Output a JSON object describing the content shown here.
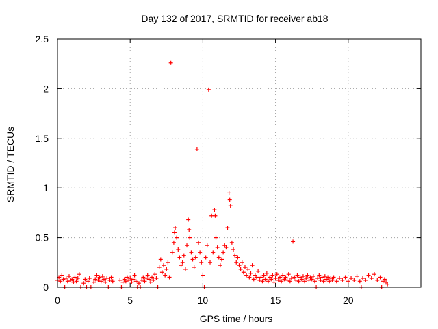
{
  "chart_data": {
    "type": "scatter",
    "title": "Day 132 of 2017, SRMTID for receiver ab18",
    "xlabel": "GPS time / hours",
    "ylabel": "SRMTID / TECUs",
    "xlim": [
      0,
      25
    ],
    "ylim": [
      0,
      2.5
    ],
    "xticks": [
      0,
      5,
      10,
      15,
      20
    ],
    "xtick_labels": [
      "0",
      "5",
      "10",
      "15",
      "20"
    ],
    "yticks": [
      0,
      0.5,
      1,
      1.5,
      2,
      2.5
    ],
    "ytick_labels": [
      "0",
      "0.5",
      "1",
      "1.5",
      "2",
      "2.5"
    ],
    "grid": true,
    "marker": "+",
    "series": [
      {
        "name": "SRMTID",
        "color": "#ff0000",
        "points": [
          [
            0.0,
            0.07
          ],
          [
            0.1,
            0.1
          ],
          [
            0.2,
            0.06
          ],
          [
            0.3,
            0.12
          ],
          [
            0.4,
            0.08
          ],
          [
            0.5,
            0.0
          ],
          [
            0.6,
            0.09
          ],
          [
            0.7,
            0.06
          ],
          [
            0.8,
            0.11
          ],
          [
            0.9,
            0.07
          ],
          [
            1.0,
            0.08
          ],
          [
            1.1,
            0.05
          ],
          [
            1.2,
            0.1
          ],
          [
            1.3,
            0.06
          ],
          [
            1.4,
            0.09
          ],
          [
            1.5,
            0.13
          ],
          [
            1.6,
            0.0
          ],
          [
            1.8,
            0.04
          ],
          [
            1.9,
            0.08
          ],
          [
            2.0,
            0.0
          ],
          [
            2.1,
            0.06
          ],
          [
            2.2,
            0.09
          ],
          [
            2.3,
            0.0
          ],
          [
            2.5,
            0.05
          ],
          [
            2.6,
            0.08
          ],
          [
            2.7,
            0.12
          ],
          [
            2.8,
            0.07
          ],
          [
            2.9,
            0.1
          ],
          [
            3.0,
            0.06
          ],
          [
            3.1,
            0.11
          ],
          [
            3.2,
            0.08
          ],
          [
            3.3,
            0.05
          ],
          [
            3.4,
            0.09
          ],
          [
            3.5,
            0.0
          ],
          [
            3.6,
            0.07
          ],
          [
            3.7,
            0.1
          ],
          [
            3.8,
            0.06
          ],
          [
            4.3,
            0.07
          ],
          [
            4.4,
            0.0
          ],
          [
            4.5,
            0.05
          ],
          [
            4.6,
            0.08
          ],
          [
            4.7,
            0.06
          ],
          [
            4.8,
            0.1
          ],
          [
            4.9,
            0.07
          ],
          [
            5.0,
            0.09
          ],
          [
            5.1,
            0.05
          ],
          [
            5.2,
            0.08
          ],
          [
            5.3,
            0.12
          ],
          [
            5.4,
            0.06
          ],
          [
            5.5,
            0.0
          ],
          [
            5.6,
            0.04
          ],
          [
            5.7,
            0.0
          ],
          [
            5.8,
            0.07
          ],
          [
            5.9,
            0.1
          ],
          [
            6.0,
            0.06
          ],
          [
            6.1,
            0.09
          ],
          [
            6.2,
            0.12
          ],
          [
            6.3,
            0.08
          ],
          [
            6.4,
            0.05
          ],
          [
            6.5,
            0.1
          ],
          [
            6.6,
            0.07
          ],
          [
            6.7,
            0.13
          ],
          [
            6.8,
            0.09
          ],
          [
            6.9,
            0.0
          ],
          [
            7.0,
            0.2
          ],
          [
            7.1,
            0.28
          ],
          [
            7.2,
            0.15
          ],
          [
            7.3,
            0.22
          ],
          [
            7.4,
            0.12
          ],
          [
            7.5,
            0.18
          ],
          [
            7.6,
            0.25
          ],
          [
            7.7,
            0.1
          ],
          [
            7.8,
            2.26
          ],
          [
            7.9,
            0.35
          ],
          [
            8.0,
            0.45
          ],
          [
            8.05,
            0.55
          ],
          [
            8.1,
            0.6
          ],
          [
            8.2,
            0.5
          ],
          [
            8.3,
            0.38
          ],
          [
            8.4,
            0.3
          ],
          [
            8.5,
            0.22
          ],
          [
            8.6,
            0.25
          ],
          [
            8.7,
            0.32
          ],
          [
            8.8,
            0.18
          ],
          [
            8.9,
            0.42
          ],
          [
            9.0,
            0.68
          ],
          [
            9.05,
            0.58
          ],
          [
            9.1,
            0.5
          ],
          [
            9.2,
            0.35
          ],
          [
            9.3,
            0.28
          ],
          [
            9.4,
            0.2
          ],
          [
            9.5,
            0.3
          ],
          [
            9.6,
            1.39
          ],
          [
            9.7,
            0.45
          ],
          [
            9.8,
            0.35
          ],
          [
            9.9,
            0.25
          ],
          [
            10.0,
            0.12
          ],
          [
            10.1,
            0.0
          ],
          [
            10.2,
            0.3
          ],
          [
            10.3,
            0.42
          ],
          [
            10.4,
            1.99
          ],
          [
            10.5,
            0.25
          ],
          [
            10.6,
            0.72
          ],
          [
            10.7,
            0.35
          ],
          [
            10.8,
            0.78
          ],
          [
            10.85,
            0.72
          ],
          [
            10.9,
            0.5
          ],
          [
            11.0,
            0.4
          ],
          [
            11.1,
            0.3
          ],
          [
            11.2,
            0.22
          ],
          [
            11.3,
            0.28
          ],
          [
            11.4,
            0.35
          ],
          [
            11.5,
            0.42
          ],
          [
            11.6,
            0.4
          ],
          [
            11.7,
            0.6
          ],
          [
            11.8,
            0.95
          ],
          [
            11.85,
            0.88
          ],
          [
            11.9,
            0.82
          ],
          [
            12.0,
            0.45
          ],
          [
            12.1,
            0.38
          ],
          [
            12.2,
            0.32
          ],
          [
            12.3,
            0.25
          ],
          [
            12.4,
            0.3
          ],
          [
            12.5,
            0.22
          ],
          [
            12.6,
            0.18
          ],
          [
            12.7,
            0.25
          ],
          [
            12.8,
            0.15
          ],
          [
            12.9,
            0.2
          ],
          [
            13.0,
            0.12
          ],
          [
            13.1,
            0.18
          ],
          [
            13.2,
            0.1
          ],
          [
            13.3,
            0.14
          ],
          [
            13.4,
            0.22
          ],
          [
            13.5,
            0.08
          ],
          [
            13.6,
            0.12
          ],
          [
            13.7,
            0.1
          ],
          [
            13.8,
            0.16
          ],
          [
            13.9,
            0.07
          ],
          [
            14.0,
            0.1
          ],
          [
            14.1,
            0.06
          ],
          [
            14.2,
            0.12
          ],
          [
            14.3,
            0.08
          ],
          [
            14.4,
            0.14
          ],
          [
            14.5,
            0.06
          ],
          [
            14.6,
            0.1
          ],
          [
            14.7,
            0.08
          ],
          [
            14.8,
            0.12
          ],
          [
            14.9,
            0.05
          ],
          [
            15.0,
            0.09
          ],
          [
            15.1,
            0.13
          ],
          [
            15.2,
            0.07
          ],
          [
            15.3,
            0.1
          ],
          [
            15.4,
            0.06
          ],
          [
            15.5,
            0.12
          ],
          [
            15.6,
            0.08
          ],
          [
            15.7,
            0.1
          ],
          [
            15.8,
            0.07
          ],
          [
            15.9,
            0.13
          ],
          [
            16.0,
            0.06
          ],
          [
            16.1,
            0.09
          ],
          [
            16.2,
            0.46
          ],
          [
            16.3,
            0.1
          ],
          [
            16.4,
            0.07
          ],
          [
            16.5,
            0.12
          ],
          [
            16.6,
            0.06
          ],
          [
            16.7,
            0.1
          ],
          [
            16.8,
            0.08
          ],
          [
            16.9,
            0.11
          ],
          [
            17.0,
            0.06
          ],
          [
            17.1,
            0.09
          ],
          [
            17.2,
            0.12
          ],
          [
            17.3,
            0.07
          ],
          [
            17.4,
            0.1
          ],
          [
            17.5,
            0.08
          ],
          [
            17.6,
            0.11
          ],
          [
            17.7,
            0.06
          ],
          [
            17.8,
            0.0
          ],
          [
            17.9,
            0.09
          ],
          [
            18.0,
            0.12
          ],
          [
            18.1,
            0.07
          ],
          [
            18.2,
            0.1
          ],
          [
            18.3,
            0.06
          ],
          [
            18.4,
            0.11
          ],
          [
            18.5,
            0.08
          ],
          [
            18.6,
            0.1
          ],
          [
            18.7,
            0.06
          ],
          [
            18.8,
            0.09
          ],
          [
            18.9,
            0.07
          ],
          [
            19.0,
            0.1
          ],
          [
            19.2,
            0.06
          ],
          [
            19.4,
            0.09
          ],
          [
            19.6,
            0.07
          ],
          [
            19.8,
            0.1
          ],
          [
            20.0,
            0.06
          ],
          [
            20.2,
            0.09
          ],
          [
            20.4,
            0.07
          ],
          [
            20.6,
            0.11
          ],
          [
            20.8,
            0.06
          ],
          [
            20.9,
            0.0
          ],
          [
            21.0,
            0.09
          ],
          [
            21.2,
            0.07
          ],
          [
            21.4,
            0.12
          ],
          [
            21.6,
            0.09
          ],
          [
            21.8,
            0.13
          ],
          [
            22.0,
            0.07
          ],
          [
            22.2,
            0.1
          ],
          [
            22.3,
            0.0
          ],
          [
            22.4,
            0.06
          ],
          [
            22.5,
            0.08
          ],
          [
            22.6,
            0.05
          ],
          [
            22.7,
            0.03
          ]
        ]
      }
    ]
  }
}
